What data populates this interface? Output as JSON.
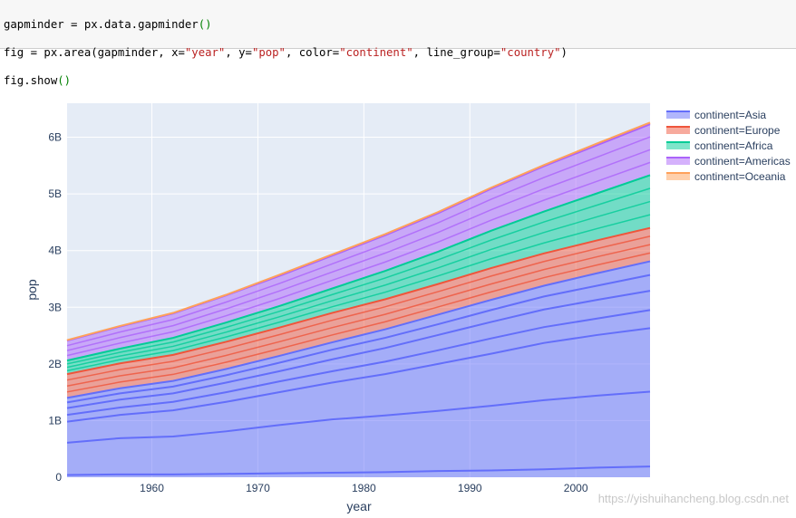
{
  "code": {
    "line1": {
      "a": "gapminder = px.data.gapminder",
      "open": "(",
      "close": ")"
    },
    "line2": {
      "prefix": "fig = px.area(gapminder, x=",
      "x": "\"year\"",
      "sep1": ", y=",
      "y": "\"pop\"",
      "sep2": ", color=",
      "color": "\"continent\"",
      "sep3": ", line_group=",
      "line_group": "\"country\"",
      "close": ")"
    },
    "line3": {
      "a": "fig.show",
      "open": "(",
      "close": ")"
    }
  },
  "watermark": "https://yishuihancheng.blog.csdn.net",
  "colors": {
    "plot_bg": "#e5ecf6",
    "Asia": "#636efa",
    "Europe": "#ef553b",
    "Africa": "#00cc96",
    "Americas": "#ab63fa",
    "Oceania": "#ffa15a"
  },
  "chart_data": {
    "type": "area",
    "title": "",
    "xlabel": "year",
    "ylabel": "pop",
    "xlim": [
      1952,
      2007
    ],
    "ylim": [
      0,
      6.6
    ],
    "x_ticks": [
      1960,
      1970,
      1980,
      1990,
      2000
    ],
    "x_tick_labels": [
      "1960",
      "1970",
      "1980",
      "1990",
      "2000"
    ],
    "y_ticks": [
      0,
      1,
      2,
      3,
      4,
      5,
      6
    ],
    "y_tick_labels": [
      "0",
      "1B",
      "2B",
      "3B",
      "4B",
      "5B",
      "6B"
    ],
    "y_unit": "billions",
    "grid": true,
    "legend_position": "right",
    "x": [
      1952,
      1957,
      1962,
      1967,
      1972,
      1977,
      1982,
      1987,
      1992,
      1997,
      2002,
      2007
    ],
    "series": [
      {
        "name": "continent=Asia",
        "continent": "Asia",
        "values": [
          1.4,
          1.57,
          1.7,
          1.91,
          2.14,
          2.38,
          2.61,
          2.87,
          3.13,
          3.38,
          3.6,
          3.81
        ]
      },
      {
        "name": "continent=Europe",
        "continent": "Europe",
        "values": [
          0.42,
          0.44,
          0.46,
          0.48,
          0.5,
          0.52,
          0.53,
          0.54,
          0.56,
          0.57,
          0.58,
          0.59
        ]
      },
      {
        "name": "continent=Africa",
        "continent": "Africa",
        "values": [
          0.24,
          0.26,
          0.3,
          0.34,
          0.38,
          0.43,
          0.5,
          0.57,
          0.66,
          0.74,
          0.83,
          0.93
        ]
      },
      {
        "name": "continent=Americas",
        "continent": "Americas",
        "values": [
          0.35,
          0.39,
          0.43,
          0.48,
          0.53,
          0.58,
          0.63,
          0.68,
          0.74,
          0.8,
          0.85,
          0.9
        ]
      },
      {
        "name": "continent=Oceania",
        "continent": "Oceania",
        "values": [
          0.01,
          0.01,
          0.01,
          0.01,
          0.02,
          0.02,
          0.02,
          0.02,
          0.02,
          0.02,
          0.03,
          0.03
        ]
      }
    ],
    "inner_lines": {
      "Asia": [
        [
          0.04,
          0.05,
          0.05,
          0.06,
          0.07,
          0.08,
          0.09,
          0.11,
          0.12,
          0.14,
          0.17,
          0.19
        ],
        [
          0.61,
          0.69,
          0.72,
          0.81,
          0.92,
          1.02,
          1.09,
          1.17,
          1.26,
          1.36,
          1.44,
          1.51
        ],
        [
          0.98,
          1.1,
          1.18,
          1.33,
          1.5,
          1.67,
          1.82,
          2.0,
          2.18,
          2.37,
          2.51,
          2.63
        ],
        [
          1.1,
          1.23,
          1.33,
          1.5,
          1.69,
          1.87,
          2.04,
          2.24,
          2.45,
          2.65,
          2.8,
          2.95
        ],
        [
          1.22,
          1.37,
          1.48,
          1.67,
          1.87,
          2.08,
          2.28,
          2.51,
          2.74,
          2.96,
          3.13,
          3.29
        ],
        [
          1.32,
          1.48,
          1.6,
          1.8,
          2.02,
          2.25,
          2.46,
          2.7,
          2.95,
          3.19,
          3.38,
          3.57
        ]
      ]
    }
  }
}
